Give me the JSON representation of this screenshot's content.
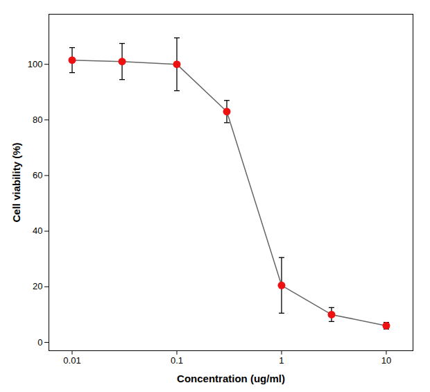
{
  "chart_data": {
    "type": "line",
    "x": [
      0.01,
      0.03,
      0.1,
      0.3,
      1.0,
      3.0,
      10.0
    ],
    "values": [
      101.5,
      101.0,
      100.0,
      83.0,
      20.5,
      10.0,
      6.0
    ],
    "yerr": [
      4.5,
      6.5,
      9.5,
      4.0,
      10.0,
      2.5,
      1.2
    ],
    "xlabel": "Concentration (ug/ml)",
    "ylabel": "Cell viability (%)",
    "xlim": [
      0.006,
      18
    ],
    "ylim": [
      -3,
      118
    ],
    "xticks": [
      0.01,
      0.1,
      1,
      10
    ],
    "yticks": [
      0,
      20,
      40,
      60,
      80,
      100
    ],
    "log": "x",
    "color": "#EE1111",
    "marker": "circle"
  }
}
